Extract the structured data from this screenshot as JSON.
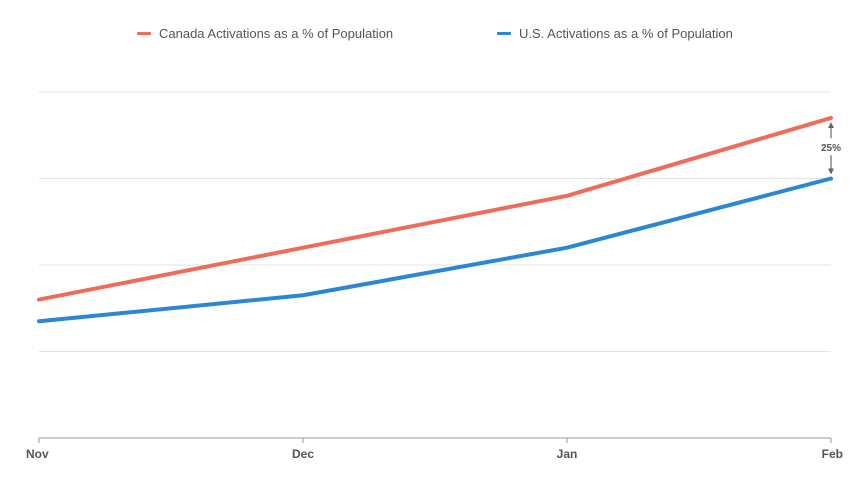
{
  "chart_data": {
    "type": "line",
    "categories": [
      "Nov",
      "Dec",
      "Jan",
      "Feb"
    ],
    "series": [
      {
        "name": "Canada Activations as a % of Population",
        "color": "#ef6c5a",
        "values": [
          1.6,
          2.2,
          2.8,
          3.7
        ]
      },
      {
        "name": "U.S. Activations as a % of Population",
        "color": "#2b86d3",
        "values": [
          1.35,
          1.65,
          2.2,
          3.0
        ]
      }
    ],
    "ylim": [
      0,
      4
    ],
    "y_tick_labels_shown": false,
    "grid": true,
    "legend_position": "top",
    "annotation": {
      "text": "25%",
      "category": "Feb"
    }
  }
}
